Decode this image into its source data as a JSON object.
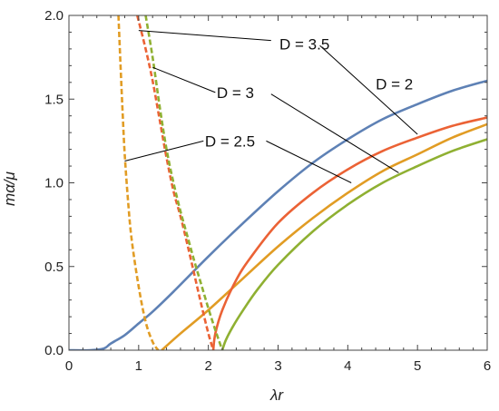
{
  "chart_data": {
    "type": "line",
    "xlabel": "λr",
    "ylabel": "mα/μ",
    "xlim": [
      0,
      6
    ],
    "ylim": [
      0,
      2
    ],
    "x_ticks": [
      0,
      1,
      2,
      3,
      4,
      5,
      6
    ],
    "y_ticks": [
      0.0,
      0.5,
      1.0,
      1.5,
      2.0
    ],
    "x_tick_labels": [
      "0",
      "1",
      "2",
      "3",
      "4",
      "5",
      "6"
    ],
    "y_tick_labels": [
      "0.0",
      "0.5",
      "1.0",
      "1.5",
      "2.0"
    ],
    "frame": true,
    "grid": false,
    "legend": "none",
    "colors": {
      "D2": "#5e81b5",
      "D25": "#e19c24",
      "D3": "#eb6235",
      "D35": "#8fb032",
      "leader": "#000000"
    },
    "series": [
      {
        "line_style": "solid",
        "color": "#5e81b5",
        "x": [
          0.0,
          0.3,
          0.5,
          0.6,
          0.8,
          1.0,
          1.2,
          1.5,
          2.0,
          2.5,
          3.0,
          3.5,
          4.0,
          4.5,
          5.0,
          5.5,
          6.0
        ],
        "y": [
          0.0,
          0.0,
          0.01,
          0.04,
          0.09,
          0.16,
          0.23,
          0.35,
          0.56,
          0.76,
          0.95,
          1.12,
          1.26,
          1.38,
          1.47,
          1.55,
          1.61
        ]
      },
      {
        "line_style": "solid",
        "color": "#e19c24",
        "x": [
          1.33,
          1.6,
          2.0,
          2.5,
          3.0,
          3.5,
          4.0,
          4.5,
          5.0,
          5.5,
          6.0
        ],
        "y": [
          0.0,
          0.1,
          0.24,
          0.43,
          0.62,
          0.79,
          0.94,
          1.07,
          1.17,
          1.27,
          1.35
        ]
      },
      {
        "line_style": "solid",
        "color": "#eb6235",
        "x": [
          2.07,
          2.1,
          2.2,
          2.4,
          2.6,
          3.0,
          3.5,
          4.0,
          4.5,
          5.0,
          5.5,
          6.0
        ],
        "y": [
          0.0,
          0.1,
          0.24,
          0.42,
          0.55,
          0.76,
          0.94,
          1.08,
          1.19,
          1.27,
          1.34,
          1.39
        ]
      },
      {
        "line_style": "solid",
        "color": "#8fb032",
        "x": [
          2.2,
          2.25,
          2.35,
          2.5,
          2.7,
          3.0,
          3.5,
          4.0,
          4.5,
          5.0,
          5.5,
          6.0
        ],
        "y": [
          0.0,
          0.06,
          0.14,
          0.24,
          0.36,
          0.51,
          0.71,
          0.87,
          1.0,
          1.1,
          1.19,
          1.26
        ]
      },
      {
        "line_style": "dashed",
        "color": "#e19c24",
        "x": [
          0.71,
          0.74,
          0.77,
          0.8,
          0.85,
          0.9,
          1.0,
          1.1,
          1.2,
          1.28
        ],
        "y": [
          2.0,
          1.7,
          1.42,
          1.17,
          0.88,
          0.66,
          0.38,
          0.17,
          0.05,
          0.0
        ]
      },
      {
        "line_style": "dashed",
        "color": "#eb6235",
        "x": [
          0.98,
          1.1,
          1.2,
          1.3,
          1.4,
          1.5,
          1.6,
          1.7,
          1.8,
          1.9,
          2.0,
          2.07
        ],
        "y": [
          2.0,
          1.8,
          1.61,
          1.38,
          1.15,
          0.95,
          0.8,
          0.63,
          0.45,
          0.27,
          0.1,
          0.0
        ]
      },
      {
        "line_style": "dashed",
        "color": "#8fb032",
        "x": [
          1.1,
          1.2,
          1.3,
          1.4,
          1.5,
          1.6,
          1.7,
          1.8,
          1.9,
          2.0,
          2.1,
          2.2
        ],
        "y": [
          2.0,
          1.75,
          1.46,
          1.2,
          1.0,
          0.83,
          0.68,
          0.53,
          0.39,
          0.25,
          0.12,
          0.0
        ]
      }
    ],
    "annotations": [
      {
        "text": "D = 2",
        "color": "#000000",
        "x": 4.4,
        "y": 1.59,
        "leader": null
      },
      {
        "text": "D = 3.5",
        "color": "#000000",
        "x": 3.02,
        "y": 1.83,
        "leader": {
          "from": [
            1.0,
            1.91
          ],
          "to_label": [
            2.9,
            1.85
          ],
          "from_label": [
            3.6,
            1.82
          ],
          "to": [
            5.0,
            1.29
          ]
        }
      },
      {
        "text": "D = 3",
        "color": "#000000",
        "x": 2.12,
        "y": 1.54,
        "leader": {
          "from": [
            1.2,
            1.69
          ],
          "to_label": [
            2.1,
            1.54
          ],
          "from_label": [
            2.9,
            1.53
          ],
          "to": [
            4.73,
            1.06
          ]
        }
      },
      {
        "text": "D = 2.5",
        "color": "#000000",
        "x": 1.95,
        "y": 1.25,
        "leader": {
          "from": [
            0.8,
            1.13
          ],
          "to_label": [
            1.93,
            1.25
          ],
          "from_label": [
            2.83,
            1.25
          ],
          "to": [
            4.05,
            1.0
          ]
        }
      }
    ]
  }
}
